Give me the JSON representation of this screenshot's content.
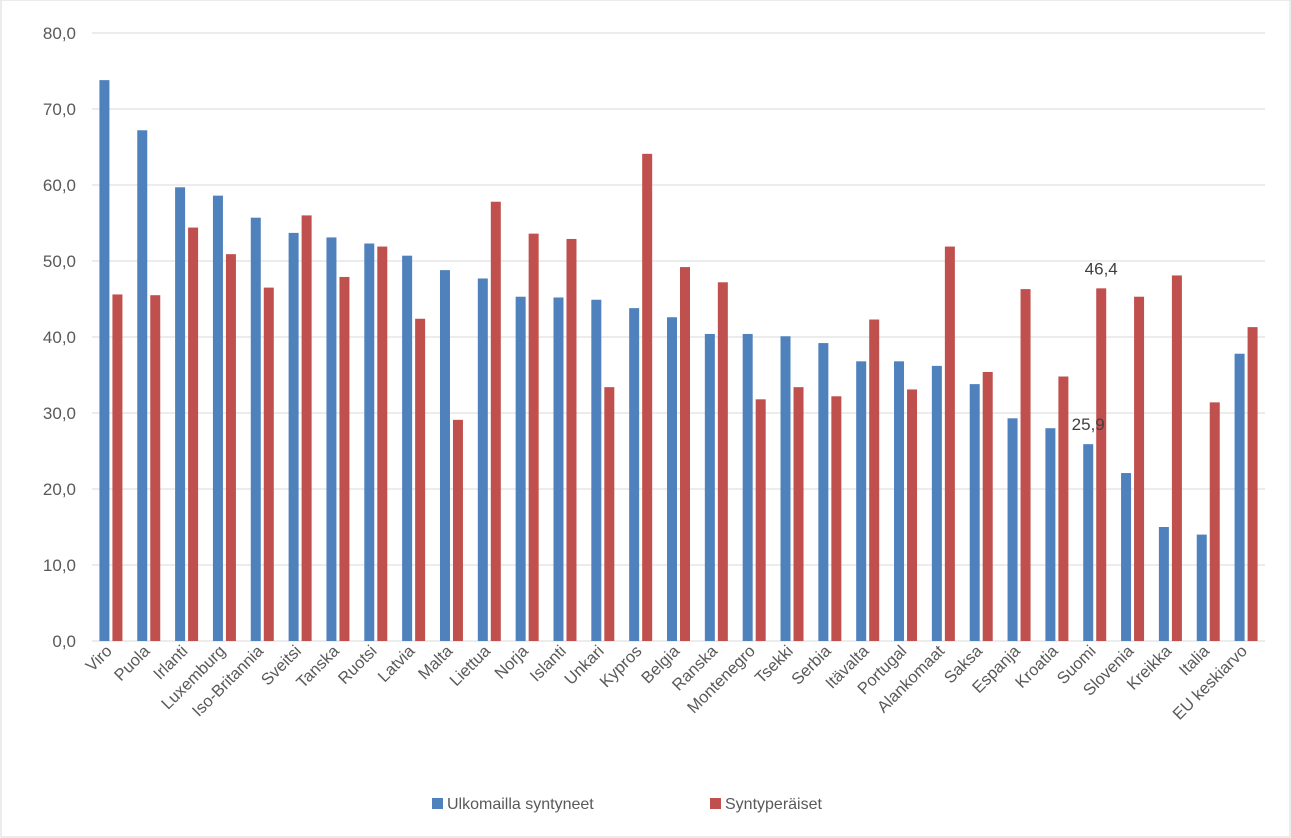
{
  "chart_data": {
    "type": "bar",
    "title": "",
    "xlabel": "",
    "ylabel": "",
    "ylim": [
      0,
      80
    ],
    "yticks": [
      0,
      10,
      20,
      30,
      40,
      50,
      60,
      70,
      80
    ],
    "ytick_labels": [
      "0,0",
      "10,0",
      "20,0",
      "30,0",
      "40,0",
      "50,0",
      "60,0",
      "70,0",
      "80,0"
    ],
    "grid": true,
    "legend_position": "bottom",
    "categories": [
      "Viro",
      "Puola",
      "Irlanti",
      "Luxemburg",
      "Iso-Britannia",
      "Sveitsi",
      "Tanska",
      "Ruotsi",
      "Latvia",
      "Malta",
      "Liettua",
      "Norja",
      "Islanti",
      "Unkari",
      "Kypros",
      "Belgia",
      "Ranska",
      "Montenegro",
      "Tsekki",
      "Serbia",
      "Itävalta",
      "Portugal",
      "Alankomaat",
      "Saksa",
      "Espanja",
      "Kroatia",
      "Suomi",
      "Slovenia",
      "Kreikka",
      "Italia",
      "EU keskiarvo"
    ],
    "series": [
      {
        "name": "Ulkomailla syntyneet",
        "color": "#4f81bd",
        "values": [
          73.8,
          67.2,
          59.7,
          58.6,
          55.7,
          53.7,
          53.1,
          52.3,
          50.7,
          48.8,
          47.7,
          45.3,
          45.2,
          44.9,
          43.8,
          42.6,
          40.4,
          40.4,
          40.1,
          39.2,
          36.8,
          36.8,
          36.2,
          33.8,
          29.3,
          28.0,
          25.9,
          22.1,
          15.0,
          14.0,
          37.8
        ]
      },
      {
        "name": "Syntyperäiset",
        "color": "#c0504d",
        "values": [
          45.6,
          45.5,
          54.4,
          50.9,
          46.5,
          56.0,
          47.9,
          51.9,
          42.4,
          29.1,
          57.8,
          53.6,
          52.9,
          33.4,
          64.1,
          49.2,
          47.2,
          31.8,
          33.4,
          32.2,
          42.3,
          33.1,
          51.9,
          35.4,
          46.3,
          34.8,
          46.4,
          45.3,
          48.1,
          31.4,
          41.3
        ]
      }
    ],
    "data_labels": [
      {
        "category": "Suomi",
        "series": "Ulkomailla syntyneet",
        "text": "25,9"
      },
      {
        "category": "Suomi",
        "series": "Syntyperäiset",
        "text": "46,4"
      }
    ]
  }
}
